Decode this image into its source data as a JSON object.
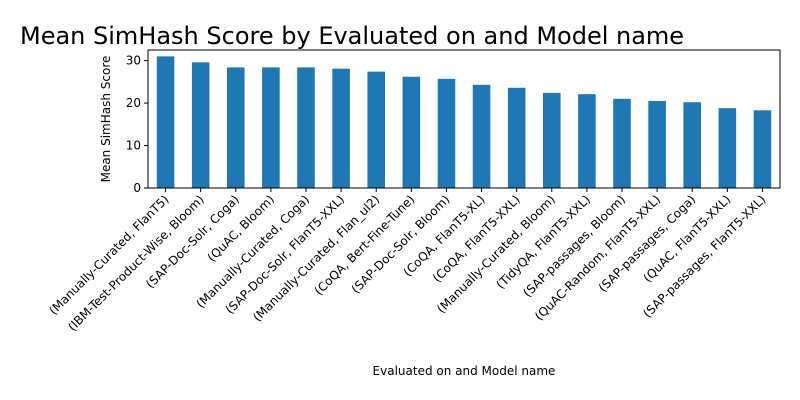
{
  "chart_data": {
    "type": "bar",
    "title": "Mean SimHash Score by Evaluated on and Model name",
    "xlabel": "Evaluated on and Model name",
    "ylabel": "Mean SimHash Score",
    "ylim": [
      0,
      32.5
    ],
    "yticks": [
      0,
      10,
      20,
      30
    ],
    "grid": false,
    "bar_color": "#1f77b4",
    "categories": [
      "(Manually-Curated, FlanT5)",
      "(IBM-Test-Product-Wise, Bloom)",
      "(SAP-Doc-Solr, Coga)",
      "(QuAC, Bloom)",
      "(Manually-Curated, Coga)",
      "(SAP-Doc-Solr, FlanT5-XXL)",
      "(Manually-Curated, Flan_ul2)",
      "(CoQA, Bert-Fine-Tune)",
      "(SAP-Doc-Solr, Bloom)",
      "(CoQA, FlanT5-XL)",
      "(CoQA, FlanT5-XXL)",
      "(Manually-Curated, Bloom)",
      "(TidyQA, FlanT5-XXL)",
      "(SAP-passages, Bloom)",
      "(QuAC-Random, FlanT5-XXL)",
      "(SAP-passages, Coga)",
      "(QuAC, FlanT5-XXL)",
      "(SAP-passages, FlanT5-XXL)"
    ],
    "values": [
      31.0,
      29.6,
      28.4,
      28.4,
      28.4,
      28.1,
      27.4,
      26.2,
      25.7,
      24.3,
      23.6,
      22.4,
      22.1,
      21.0,
      20.5,
      20.2,
      18.8,
      18.3
    ]
  }
}
